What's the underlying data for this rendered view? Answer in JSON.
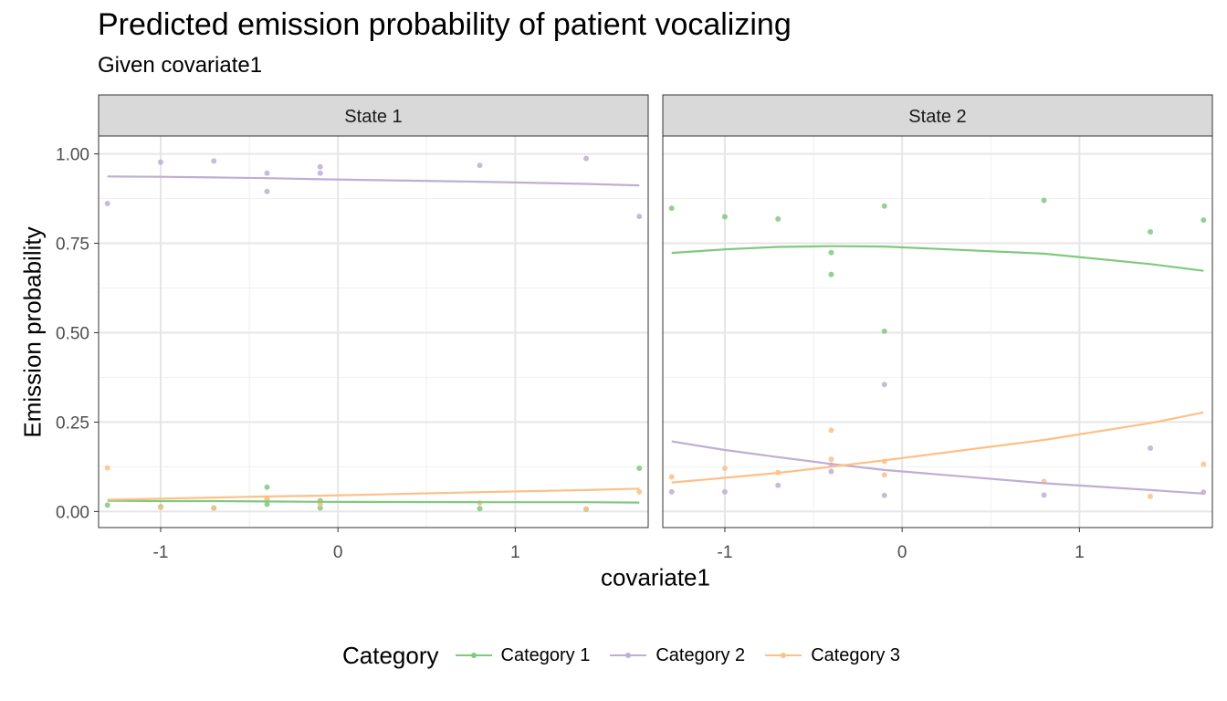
{
  "chart_data": {
    "type": "line",
    "title": "Predicted emission probability of patient vocalizing",
    "subtitle": "Given covariate1",
    "xlabel": "covariate1",
    "ylabel": "Emission probability",
    "x_ticks": [
      -1,
      0,
      1
    ],
    "y_ticks": [
      "0.00",
      "0.25",
      "0.50",
      "0.75",
      "1.00"
    ],
    "xlim": [
      -1.35,
      1.75
    ],
    "ylim": [
      -0.045,
      1.05
    ],
    "grid": true,
    "legend": {
      "title": "Category",
      "position": "bottom",
      "entries": [
        "Category 1",
        "Category 2",
        "Category 3"
      ]
    },
    "colors": {
      "Category 1": "#7fc97f",
      "Category 2": "#beaed4",
      "Category 3": "#fdc086"
    },
    "facets": [
      {
        "label": "State 1",
        "lines": [
          {
            "name": "Category 1",
            "x": [
              -1.3,
              -1.0,
              -0.7,
              -0.4,
              -0.1,
              0.8,
              1.4,
              1.7
            ],
            "y": [
              0.03,
              0.029,
              0.029,
              0.028,
              0.027,
              0.026,
              0.026,
              0.025
            ]
          },
          {
            "name": "Category 2",
            "x": [
              -1.3,
              -1.0,
              -0.7,
              -0.4,
              -0.1,
              0.8,
              1.4,
              1.7
            ],
            "y": [
              0.937,
              0.936,
              0.934,
              0.932,
              0.929,
              0.922,
              0.916,
              0.912
            ]
          },
          {
            "name": "Category 3",
            "x": [
              -1.3,
              -1.0,
              -0.7,
              -0.4,
              -0.1,
              0.8,
              1.4,
              1.7
            ],
            "y": [
              0.033,
              0.036,
              0.039,
              0.042,
              0.044,
              0.054,
              0.06,
              0.064
            ]
          }
        ],
        "points": [
          {
            "name": "Category 1",
            "x": [
              -1.3,
              -1.0,
              -0.7,
              -0.4,
              -0.4,
              -0.1,
              -0.1,
              0.8,
              1.4,
              1.7
            ],
            "y": [
              0.018,
              0.013,
              0.01,
              0.02,
              0.068,
              0.01,
              0.03,
              0.008,
              0.006,
              0.121
            ]
          },
          {
            "name": "Category 2",
            "x": [
              -1.3,
              -1.0,
              -0.7,
              -0.4,
              -0.4,
              -0.1,
              -0.1,
              0.8,
              1.4,
              1.7
            ],
            "y": [
              0.861,
              0.977,
              0.98,
              0.946,
              0.895,
              0.964,
              0.946,
              0.968,
              0.987,
              0.825
            ]
          },
          {
            "name": "Category 3",
            "x": [
              -1.3,
              -1.0,
              -0.7,
              -0.4,
              -0.4,
              -0.1,
              -0.1,
              0.8,
              1.4,
              1.7
            ],
            "y": [
              0.122,
              0.011,
              0.01,
              0.034,
              0.036,
              0.024,
              0.02,
              0.024,
              0.007,
              0.055
            ]
          }
        ]
      },
      {
        "label": "State 2",
        "lines": [
          {
            "name": "Category 1",
            "x": [
              -1.3,
              -1.0,
              -0.7,
              -0.4,
              -0.1,
              0.8,
              1.4,
              1.7
            ],
            "y": [
              0.723,
              0.733,
              0.74,
              0.742,
              0.741,
              0.721,
              0.692,
              0.673
            ]
          },
          {
            "name": "Category 2",
            "x": [
              -1.3,
              -1.0,
              -0.7,
              -0.4,
              -0.1,
              0.8,
              1.4,
              1.7
            ],
            "y": [
              0.196,
              0.172,
              0.152,
              0.133,
              0.116,
              0.079,
              0.06,
              0.05
            ]
          },
          {
            "name": "Category 3",
            "x": [
              -1.3,
              -1.0,
              -0.7,
              -0.4,
              -0.1,
              0.8,
              1.4,
              1.7
            ],
            "y": [
              0.081,
              0.094,
              0.108,
              0.125,
              0.143,
              0.2,
              0.247,
              0.277
            ]
          }
        ],
        "points": [
          {
            "name": "Category 1",
            "x": [
              -1.3,
              -1.0,
              -0.7,
              -0.4,
              -0.4,
              -0.1,
              -0.1,
              0.8,
              1.4,
              1.7
            ],
            "y": [
              0.848,
              0.824,
              0.818,
              0.724,
              0.663,
              0.854,
              0.504,
              0.87,
              0.782,
              0.815
            ]
          },
          {
            "name": "Category 2",
            "x": [
              -1.3,
              -1.0,
              -0.7,
              -0.4,
              -0.4,
              -0.1,
              -0.1,
              0.8,
              1.4,
              1.7
            ],
            "y": [
              0.055,
              0.055,
              0.073,
              0.112,
              0.13,
              0.045,
              0.355,
              0.046,
              0.177,
              0.054
            ]
          },
          {
            "name": "Category 3",
            "x": [
              -1.3,
              -1.0,
              -0.7,
              -0.4,
              -0.4,
              -0.1,
              -0.1,
              0.8,
              1.4,
              1.7
            ],
            "y": [
              0.097,
              0.121,
              0.109,
              0.227,
              0.146,
              0.14,
              0.102,
              0.084,
              0.042,
              0.132
            ]
          }
        ]
      }
    ]
  }
}
